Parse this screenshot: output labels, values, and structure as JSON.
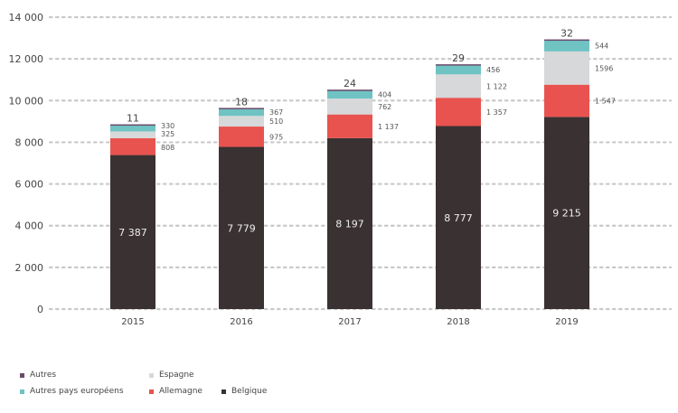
{
  "chart_data": {
    "type": "bar",
    "stacked": true,
    "categories": [
      "2015",
      "2016",
      "2017",
      "2018",
      "2019"
    ],
    "series": [
      {
        "name": "Belgique",
        "color": "#3a3132",
        "values": [
          7387,
          7779,
          8197,
          8777,
          9215
        ],
        "labels": [
          "7 387",
          "7 779",
          "8 197",
          "8 777",
          "9 215"
        ]
      },
      {
        "name": "Allemagne",
        "color": "#e8534f",
        "values": [
          808,
          975,
          1137,
          1357,
          1547
        ],
        "labels": [
          "808",
          "975",
          "1 137",
          "1 357",
          "1 547"
        ]
      },
      {
        "name": "Espagne",
        "color": "#d7d8d9",
        "values": [
          325,
          510,
          762,
          1122,
          1596
        ],
        "labels": [
          "325",
          "510",
          "762",
          "1 122",
          "1596"
        ]
      },
      {
        "name": "Autres pays européens",
        "color": "#6fc3c3",
        "values": [
          330,
          367,
          404,
          456,
          544
        ],
        "labels": [
          "330",
          "367",
          "404",
          "456",
          "544"
        ]
      },
      {
        "name": "Autres",
        "color": "#6b4a6a",
        "values": [
          11,
          18,
          24,
          29,
          32
        ],
        "labels": [
          "11",
          "18",
          "24",
          "29",
          "32"
        ]
      }
    ],
    "yticks": [
      "0",
      "2 000",
      "4 000",
      "6 000",
      "8 000",
      "10 000",
      "12 000",
      "14 000"
    ],
    "ylim": [
      0,
      14000
    ],
    "grid": true,
    "legend_position": "bottom-left",
    "legend_order": [
      "Autres",
      "Espagne",
      "Autres pays européens",
      "Allemagne",
      "Belgique"
    ]
  }
}
